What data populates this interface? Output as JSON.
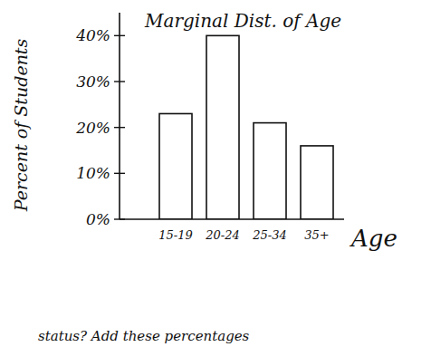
{
  "chart_data": {
    "type": "bar",
    "title": "Marginal Dist. of Age",
    "x_label": "Age",
    "y_label": "Percent of Students",
    "annotation": "status? Add these percentages",
    "categories": [
      "15-19",
      "20-24",
      "25-34",
      "35+"
    ],
    "values": [
      23,
      40,
      21,
      16
    ],
    "color": "#ffffff",
    "ylim": [
      0,
      45
    ],
    "yticks": [
      {
        "value": 0,
        "label": "0%"
      },
      {
        "value": 10,
        "label": "10%"
      },
      {
        "value": 20,
        "label": "20%"
      },
      {
        "value": 30,
        "label": "30%"
      },
      {
        "value": 40,
        "label": "40%"
      }
    ],
    "grid": false
  }
}
